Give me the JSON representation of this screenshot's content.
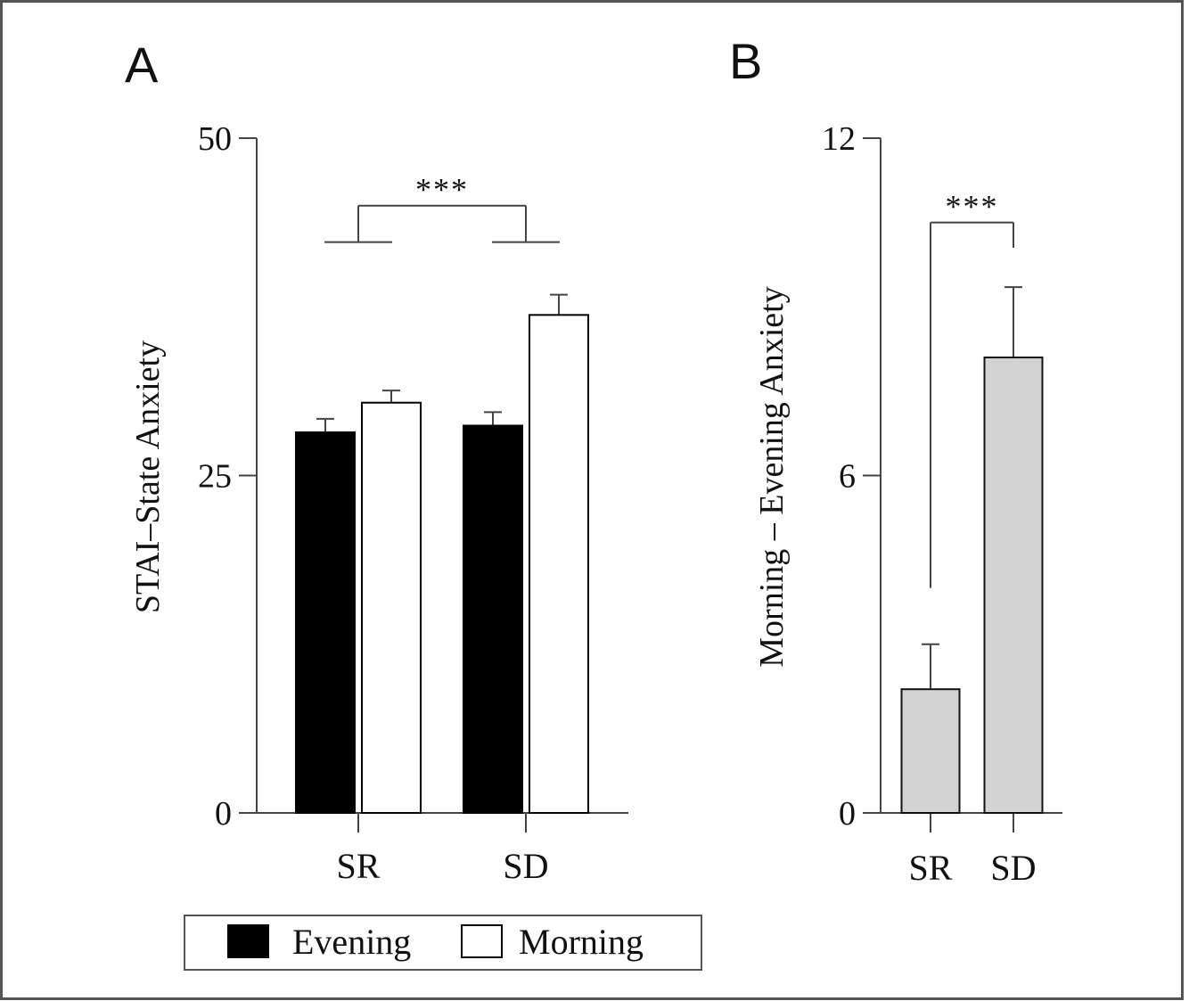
{
  "colors": {
    "evening": "#000000",
    "morning": "#ffffff",
    "difference": "#d3d3d3",
    "axis": "#444444"
  },
  "chart_data": [
    {
      "panel": "A",
      "type": "bar",
      "categories": [
        "SR",
        "SD"
      ],
      "series": [
        {
          "name": "Evening",
          "values": [
            28.2,
            28.7
          ],
          "errors": [
            1.0,
            1.0
          ]
        },
        {
          "name": "Morning",
          "values": [
            30.4,
            36.9
          ],
          "errors": [
            0.9,
            1.5
          ]
        }
      ],
      "ylabel": "STAI–State Anxiety",
      "ylim": [
        0,
        50
      ],
      "yticks": [
        0,
        25,
        50
      ],
      "significance": "***",
      "legend": "bottom"
    },
    {
      "panel": "B",
      "type": "bar",
      "categories": [
        "SR",
        "SD"
      ],
      "series": [
        {
          "values": [
            2.2,
            8.1
          ],
          "errors": [
            0.8,
            1.25
          ]
        }
      ],
      "ylabel": "Morning – Evening Anxiety",
      "ylim": [
        0,
        12
      ],
      "yticks": [
        0,
        6,
        12
      ],
      "significance": "***"
    }
  ]
}
